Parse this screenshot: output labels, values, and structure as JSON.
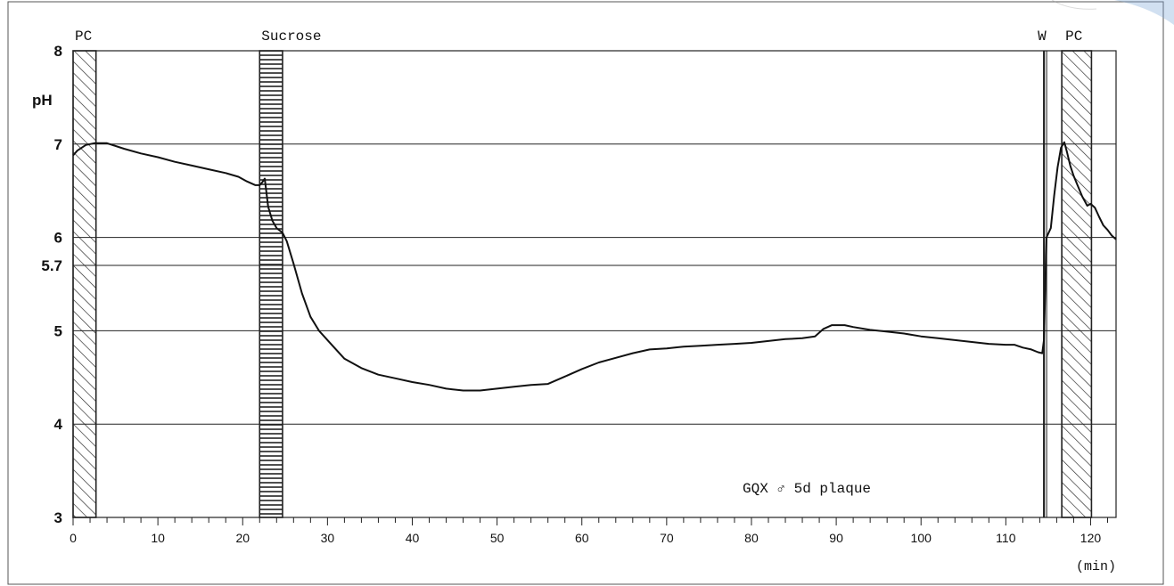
{
  "chart_data": {
    "type": "line",
    "title": "",
    "xlabel": "",
    "ylabel": "pH",
    "x_unit": "(min)",
    "xlim": [
      0,
      123
    ],
    "ylim": [
      3,
      8
    ],
    "x_ticks": [
      0,
      10,
      20,
      30,
      40,
      50,
      60,
      70,
      80,
      90,
      100,
      110,
      120
    ],
    "y_tick_labels": [
      {
        "value": 8,
        "label": "8"
      },
      {
        "value": 7,
        "label": "7"
      },
      {
        "value": 6,
        "label": "6"
      },
      {
        "value": 5.7,
        "label": "5.7"
      },
      {
        "value": 5,
        "label": "5"
      },
      {
        "value": 4,
        "label": "4"
      },
      {
        "value": 3,
        "label": "3"
      }
    ],
    "gridlines_y": [
      4,
      5,
      5.7,
      6,
      7
    ],
    "grid": "horizontal",
    "legend": "none",
    "annotation": "GQX ♂ 5d plaque",
    "treatments": [
      {
        "label": "PC",
        "start": 0,
        "end": 2.7,
        "pattern": "diagonal-hatch"
      },
      {
        "label": "Sucrose",
        "start": 22,
        "end": 24.7,
        "pattern": "horizontal-stripes"
      },
      {
        "label": "W",
        "start": 114.5,
        "end": 114.5,
        "pattern": "line"
      },
      {
        "label": "PC",
        "start": 116.6,
        "end": 120.1,
        "pattern": "diagonal-hatch"
      }
    ],
    "series": [
      {
        "x": [
          0,
          0.5,
          1.5,
          2.5,
          4,
          6,
          8,
          10,
          12,
          14,
          16,
          18,
          19.5,
          20.5,
          21.5,
          22,
          22.3,
          22.6,
          23,
          23.5,
          24,
          24.7,
          25.2,
          26,
          27,
          28,
          29,
          30,
          32,
          34,
          36,
          38,
          40,
          42,
          44,
          46,
          48,
          50,
          52,
          54,
          56,
          58,
          60,
          62,
          64,
          66,
          68,
          70,
          72,
          74,
          76,
          78,
          80,
          82,
          84,
          86,
          87.5,
          88.5,
          89.5,
          91,
          92,
          94,
          96,
          98,
          100,
          102,
          104,
          106,
          108,
          110,
          111,
          112,
          113,
          113.8,
          114.3,
          114.5,
          114.8,
          115.3,
          115.7,
          116.1,
          116.5,
          116.9,
          117.2,
          117.6,
          118,
          118.5,
          119,
          119.6,
          120,
          120.5,
          121,
          121.5,
          122,
          122.5,
          123
        ],
        "values": [
          6.88,
          6.93,
          6.99,
          7.01,
          7.01,
          6.95,
          6.9,
          6.86,
          6.81,
          6.77,
          6.73,
          6.69,
          6.65,
          6.6,
          6.56,
          6.56,
          6.59,
          6.63,
          6.33,
          6.18,
          6.1,
          6.05,
          5.96,
          5.72,
          5.4,
          5.15,
          5.0,
          4.9,
          4.7,
          4.6,
          4.53,
          4.49,
          4.45,
          4.42,
          4.38,
          4.36,
          4.36,
          4.38,
          4.4,
          4.42,
          4.43,
          4.51,
          4.59,
          4.66,
          4.71,
          4.76,
          4.8,
          4.81,
          4.83,
          4.84,
          4.85,
          4.86,
          4.87,
          4.89,
          4.91,
          4.92,
          4.94,
          5.02,
          5.06,
          5.06,
          5.04,
          5.01,
          4.99,
          4.97,
          4.94,
          4.92,
          4.9,
          4.88,
          4.86,
          4.85,
          4.85,
          4.82,
          4.8,
          4.77,
          4.76,
          4.9,
          6.0,
          6.1,
          6.45,
          6.75,
          6.96,
          7.02,
          6.92,
          6.77,
          6.66,
          6.55,
          6.44,
          6.34,
          6.36,
          6.32,
          6.22,
          6.13,
          6.08,
          6.02,
          5.98
        ]
      }
    ]
  }
}
